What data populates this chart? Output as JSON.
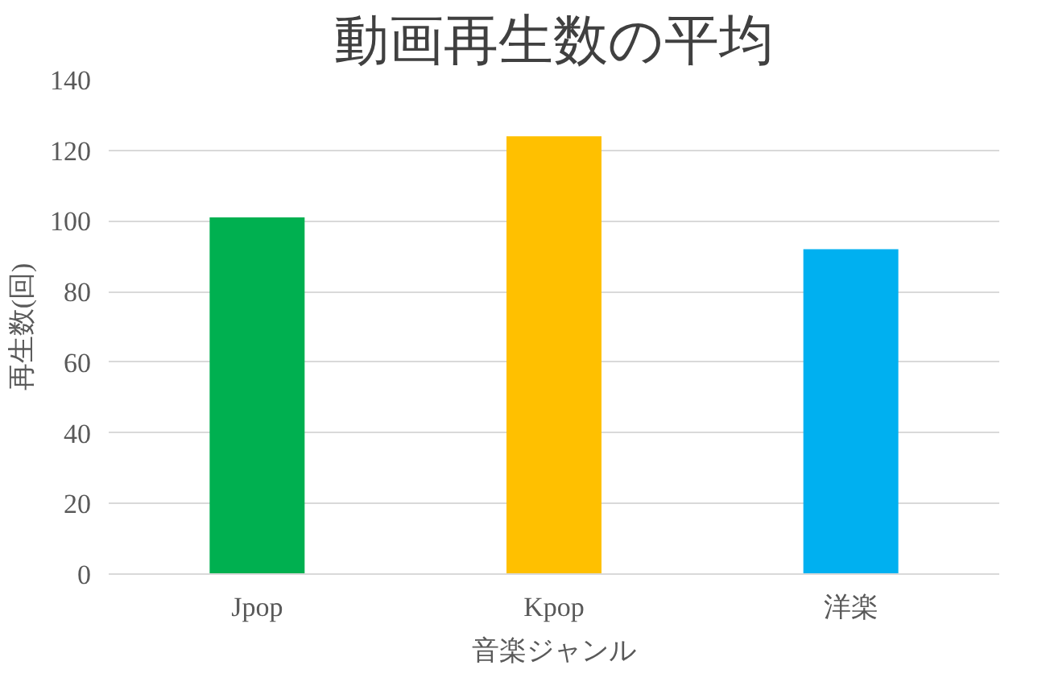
{
  "chart_data": {
    "type": "bar",
    "title": "動画再生数の平均",
    "xlabel": "音楽ジャンル",
    "ylabel": "再生数(回)",
    "categories": [
      "Jpop",
      "Kpop",
      "洋楽"
    ],
    "colors": [
      "#00b050",
      "#ffc000",
      "#00b0f0"
    ],
    "values": [
      101,
      124,
      92
    ],
    "ylim": [
      0,
      140
    ],
    "yticks": [
      0,
      20,
      40,
      60,
      80,
      100,
      120,
      140
    ],
    "grid": "y"
  }
}
